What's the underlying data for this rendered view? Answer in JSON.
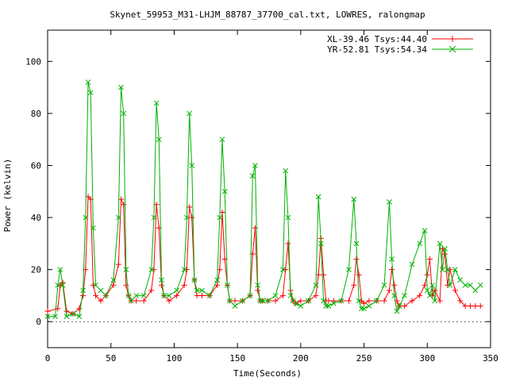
{
  "chart_data": {
    "type": "line",
    "title": "Skynet_59953_M31-LHJM_88787_37700_cal.txt, LOWRES, ralongmap",
    "xlabel": "Time(Seconds)",
    "ylabel": "Power (kelvin)",
    "xlim": [
      0,
      350
    ],
    "ylim": [
      -10,
      112
    ],
    "x_ticks": [
      "0",
      "50",
      "100",
      "150",
      "200",
      "250",
      "300",
      "350"
    ],
    "y_ticks": [
      "0",
      "20",
      "40",
      "60",
      "80",
      "100"
    ],
    "x_tick_values": [
      0,
      50,
      100,
      150,
      200,
      250,
      300,
      350
    ],
    "y_tick_values": [
      0,
      20,
      40,
      60,
      80,
      100
    ],
    "grid": false,
    "legend_position": "top-right",
    "series": [
      {
        "name": "XL-39.46 Tsys:44.40",
        "color": "#ff0000",
        "marker": "plus",
        "x": [
          0,
          8,
          10,
          12,
          15,
          20,
          25,
          28,
          30,
          32,
          34,
          36,
          38,
          42,
          46,
          52,
          56,
          58,
          60,
          62,
          64,
          66,
          70,
          76,
          82,
          84,
          86,
          88,
          90,
          92,
          96,
          102,
          108,
          110,
          112,
          114,
          116,
          118,
          122,
          128,
          134,
          136,
          138,
          140,
          142,
          144,
          148,
          154,
          160,
          162,
          164,
          166,
          168,
          170,
          174,
          180,
          186,
          188,
          190,
          192,
          194,
          196,
          200,
          206,
          212,
          214,
          216,
          218,
          220,
          222,
          226,
          232,
          238,
          242,
          244,
          246,
          248,
          250,
          254,
          260,
          266,
          270,
          272,
          274,
          276,
          278,
          282,
          288,
          294,
          298,
          300,
          302,
          304,
          306,
          310,
          312,
          314,
          316,
          318,
          322,
          326,
          330,
          334,
          338,
          342
        ],
        "y": [
          4,
          5,
          14,
          15,
          4,
          3,
          5,
          10,
          20,
          48,
          47,
          14,
          10,
          8,
          10,
          14,
          22,
          47,
          45,
          14,
          10,
          8,
          8,
          8,
          12,
          20,
          45,
          36,
          14,
          10,
          8,
          10,
          14,
          20,
          44,
          40,
          16,
          10,
          10,
          10,
          14,
          20,
          42,
          24,
          14,
          8,
          8,
          8,
          10,
          26,
          36,
          12,
          8,
          8,
          8,
          8,
          10,
          20,
          30,
          12,
          8,
          7,
          8,
          8,
          10,
          18,
          32,
          18,
          8,
          8,
          8,
          8,
          8,
          14,
          24,
          18,
          8,
          7,
          8,
          8,
          8,
          12,
          20,
          14,
          8,
          6,
          6,
          8,
          10,
          14,
          18,
          24,
          10,
          12,
          8,
          28,
          26,
          14,
          20,
          12,
          8,
          6,
          6,
          6,
          6
        ]
      },
      {
        "name": "YR-52.81 Tsys:54.34",
        "color": "#00b000",
        "marker": "cross",
        "x": [
          0,
          6,
          8,
          10,
          12,
          15,
          20,
          25,
          28,
          30,
          32,
          34,
          36,
          38,
          42,
          46,
          52,
          56,
          58,
          60,
          62,
          64,
          66,
          70,
          76,
          82,
          84,
          86,
          88,
          90,
          92,
          96,
          102,
          108,
          110,
          112,
          114,
          116,
          118,
          122,
          128,
          134,
          136,
          138,
          140,
          142,
          144,
          148,
          154,
          160,
          162,
          164,
          166,
          168,
          170,
          174,
          180,
          186,
          188,
          190,
          192,
          194,
          196,
          200,
          206,
          212,
          214,
          216,
          218,
          220,
          222,
          226,
          232,
          238,
          242,
          244,
          246,
          248,
          250,
          254,
          260,
          266,
          270,
          272,
          274,
          276,
          278,
          282,
          288,
          294,
          298,
          300,
          302,
          304,
          306,
          310,
          312,
          314,
          316,
          318,
          322,
          326,
          330,
          334,
          338,
          342
        ],
        "y": [
          2,
          2,
          14,
          20,
          14,
          2,
          3,
          2,
          12,
          40,
          92,
          88,
          36,
          14,
          12,
          10,
          16,
          40,
          90,
          80,
          20,
          10,
          8,
          10,
          10,
          20,
          40,
          84,
          70,
          16,
          10,
          10,
          12,
          20,
          40,
          80,
          60,
          16,
          12,
          12,
          10,
          16,
          40,
          70,
          50,
          14,
          8,
          6,
          8,
          10,
          56,
          60,
          14,
          8,
          8,
          8,
          10,
          20,
          58,
          40,
          10,
          8,
          7,
          6,
          8,
          14,
          48,
          30,
          8,
          6,
          6,
          7,
          8,
          20,
          47,
          30,
          8,
          5,
          5,
          6,
          8,
          14,
          46,
          24,
          10,
          4,
          6,
          10,
          22,
          30,
          35,
          12,
          10,
          14,
          8,
          30,
          20,
          28,
          20,
          14,
          20,
          16,
          14,
          14,
          12,
          14
        ]
      }
    ]
  }
}
